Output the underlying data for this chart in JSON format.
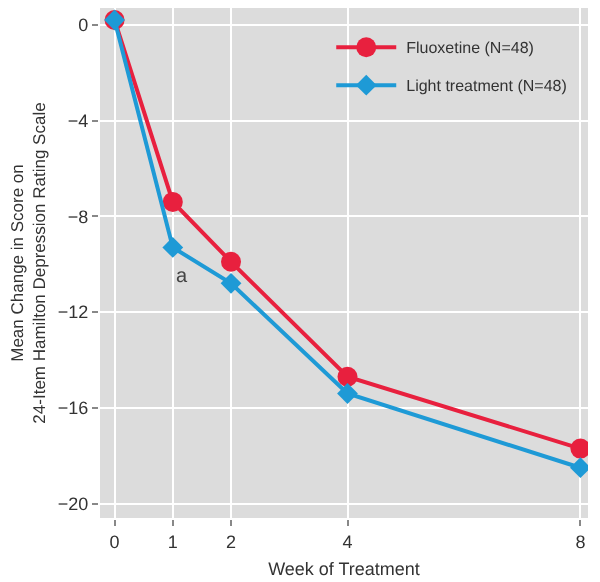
{
  "chart_data": {
    "type": "line",
    "xlabel": "Week of Treatment",
    "ylabel": "Mean Change in Score on\n24-Item Hamilton Depression Rating Scale",
    "x": [
      0,
      1,
      2,
      4,
      8
    ],
    "series": [
      {
        "name": "Fluoxetine (N=48)",
        "color": "#e8203e",
        "marker": "circle",
        "values": [
          0.2,
          -7.4,
          -9.9,
          -14.7,
          -17.7
        ]
      },
      {
        "name": "Light treatment (N=48)",
        "color": "#1e9ad6",
        "marker": "diamond",
        "values": [
          0.2,
          -9.3,
          -10.8,
          -15.4,
          -18.5
        ]
      }
    ],
    "annotations": [
      "a"
    ],
    "xlim": [
      -0.25,
      8.13
    ],
    "xticks": [
      0,
      1,
      2,
      4,
      8
    ],
    "ylim": [
      -20.6,
      0.7
    ],
    "yticks": [
      0,
      -4,
      -8,
      -12,
      -16,
      -20
    ],
    "grid": true,
    "legend": "top right",
    "line_style": "solid"
  }
}
